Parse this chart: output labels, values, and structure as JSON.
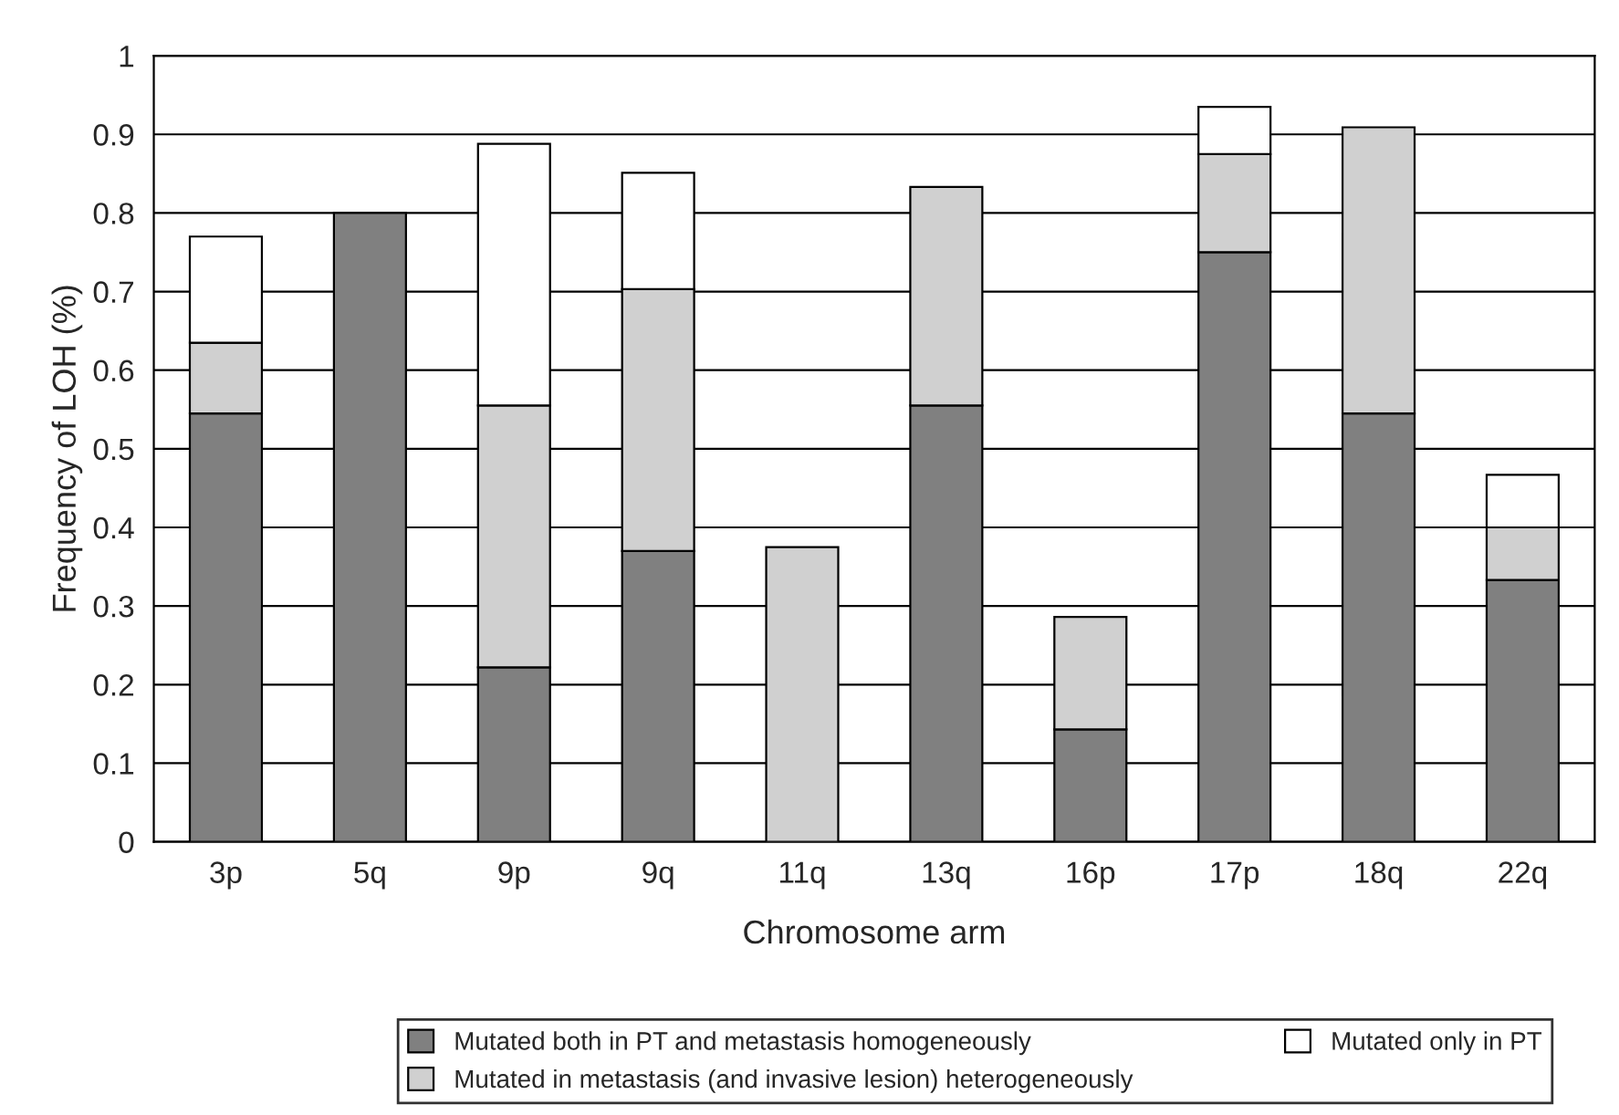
{
  "chart_data": {
    "type": "bar",
    "stacked": true,
    "xlabel": "Chromosome arm",
    "ylabel": "Frequency of LOH (%)",
    "categories": [
      "3p",
      "5q",
      "9p",
      "9q",
      "11q",
      "13q",
      "16p",
      "17p",
      "18q",
      "22q"
    ],
    "series": [
      {
        "name": "Mutated both in PT and metastasis homogeneously",
        "color": "#808080",
        "values": [
          0.545,
          0.8,
          0.222,
          0.37,
          0,
          0.555,
          0.143,
          0.75,
          0.545,
          0.333
        ]
      },
      {
        "name": "Mutated in metastasis (and invasive lesion) heterogeneously",
        "color": "#d0d0d0",
        "values": [
          0.09,
          0,
          0.333,
          0.333,
          0.375,
          0.278,
          0.143,
          0.125,
          0.364,
          0.067
        ]
      },
      {
        "name": "Mutated only in PT",
        "color": "#ffffff",
        "values": [
          0.135,
          0,
          0.333,
          0.148,
          0,
          0,
          0,
          0.06,
          0,
          0.067
        ]
      }
    ],
    "ylim": [
      0,
      1
    ],
    "yticks": [
      0,
      0.1,
      0.2,
      0.3,
      0.4,
      0.5,
      0.6,
      0.7,
      0.8,
      0.9,
      1
    ],
    "grid": "y",
    "legend": "bottom"
  }
}
